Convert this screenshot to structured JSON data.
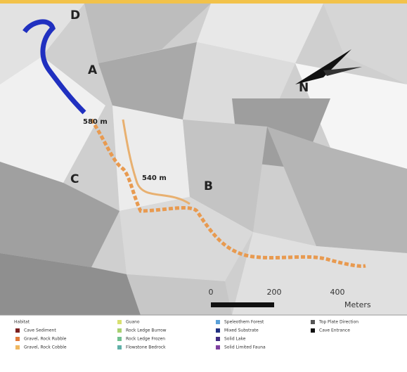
{
  "map": {
    "site_labels": [
      "D",
      "A",
      "C",
      "B"
    ],
    "elevation_labels": [
      "580 m",
      "540 m"
    ],
    "scale": {
      "ticks": [
        0,
        200,
        400
      ],
      "unit": "Meters"
    }
  },
  "legend": {
    "title": "Habitat",
    "items": [
      {
        "label": "Cave Sediment",
        "color": "#7a1f1f"
      },
      {
        "label": "Gravel, Rock Rubble",
        "color": "#e07a3a"
      },
      {
        "label": "Gravel, Rock Cobble",
        "color": "#f0b860"
      },
      {
        "label": "Guano",
        "color": "#d8e070"
      },
      {
        "label": "Rock Ledge Burrow",
        "color": "#a8d070"
      },
      {
        "label": "Rock Ledge Frozen",
        "color": "#70c090"
      },
      {
        "label": "Flowstone Bedrock",
        "color": "#60b0a8"
      },
      {
        "label": "Speleothem Forest",
        "color": "#5aa0d8"
      },
      {
        "label": "Mixed Substrate",
        "color": "#203080"
      },
      {
        "label": "Solid Lake",
        "color": "#402a80"
      },
      {
        "label": "Solid Limited Fauna",
        "color": "#8040a0"
      },
      {
        "label": "Top Plate Direction",
        "color": "#555555"
      },
      {
        "label": "Cave Entrance",
        "color": "#111111"
      }
    ]
  }
}
